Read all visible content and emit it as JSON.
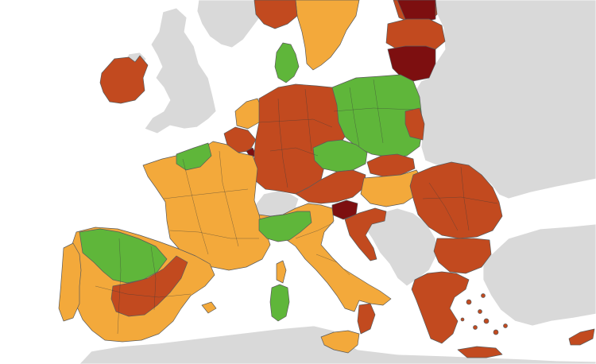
{
  "map": {
    "legend": [],
    "colors": {
      "green": "#5fb63a",
      "orange": "#f3a93b",
      "red": "#c24a1f",
      "dark_red": "#7d0f10",
      "grey": "#d9d9d9",
      "sea": "#ffffff"
    },
    "regions": [
      {
        "name": "ireland",
        "status": "red"
      },
      {
        "name": "norway",
        "status": "grey"
      },
      {
        "name": "sweden-south",
        "status": "orange"
      },
      {
        "name": "sweden-west",
        "status": "red"
      },
      {
        "name": "finland-south",
        "status": "red"
      },
      {
        "name": "estonia",
        "status": "dark_red"
      },
      {
        "name": "latvia",
        "status": "red"
      },
      {
        "name": "lithuania",
        "status": "dark_red"
      },
      {
        "name": "denmark",
        "status": "green"
      },
      {
        "name": "netherlands",
        "status": "orange"
      },
      {
        "name": "belgium",
        "status": "red"
      },
      {
        "name": "luxembourg",
        "status": "dark_red"
      },
      {
        "name": "germany",
        "status": "red"
      },
      {
        "name": "poland",
        "status": "green"
      },
      {
        "name": "poland-east",
        "status": "red"
      },
      {
        "name": "czechia",
        "status": "green"
      },
      {
        "name": "slovakia",
        "status": "red"
      },
      {
        "name": "austria",
        "status": "red"
      },
      {
        "name": "hungary",
        "status": "orange"
      },
      {
        "name": "slovenia",
        "status": "dark_red"
      },
      {
        "name": "croatia",
        "status": "red"
      },
      {
        "name": "romania",
        "status": "red"
      },
      {
        "name": "bulgaria",
        "status": "red"
      },
      {
        "name": "greece",
        "status": "red"
      },
      {
        "name": "cyprus",
        "status": "red"
      },
      {
        "name": "france",
        "status": "orange"
      },
      {
        "name": "france-north",
        "status": "green"
      },
      {
        "name": "italy",
        "status": "orange"
      },
      {
        "name": "italy-north-west",
        "status": "green"
      },
      {
        "name": "sardinia",
        "status": "green"
      },
      {
        "name": "sicily",
        "status": "orange"
      },
      {
        "name": "calabria",
        "status": "red"
      },
      {
        "name": "spain",
        "status": "orange"
      },
      {
        "name": "spain-north",
        "status": "green"
      },
      {
        "name": "spain-central",
        "status": "red"
      },
      {
        "name": "portugal",
        "status": "orange"
      },
      {
        "name": "switzerland",
        "status": "grey"
      },
      {
        "name": "uk",
        "status": "grey"
      }
    ]
  }
}
